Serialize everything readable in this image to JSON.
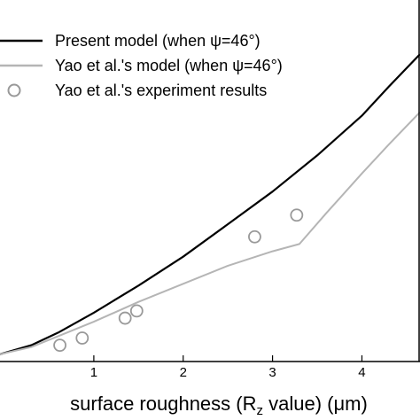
{
  "chart_data": {
    "type": "line",
    "xlabel_parts": {
      "main": "surface roughness (R",
      "sub": "z",
      "rest": " value) (μm)"
    },
    "xlim": [
      -0.05,
      4.65
    ],
    "ylim": [
      0,
      1
    ],
    "x_ticks": [
      1,
      2,
      3,
      4
    ],
    "legend_position": "top-left",
    "legend": [
      {
        "label": "Present model (when ψ=46°)",
        "color": "#000000",
        "kind": "line"
      },
      {
        "label": "Yao et al.'s model (when ψ=46°)",
        "color": "#b5b5b5",
        "kind": "line"
      },
      {
        "label": "Yao et al.'s experiment results",
        "color": "#999999",
        "kind": "marker"
      }
    ],
    "series": [
      {
        "name": "Present model (when ψ=46°)",
        "kind": "line",
        "color": "#000000",
        "x": [
          -0.05,
          0.3,
          0.6,
          1.0,
          1.5,
          2.0,
          2.5,
          3.0,
          3.5,
          4.0,
          4.3,
          4.65
        ],
        "y": [
          0.02,
          0.045,
          0.08,
          0.135,
          0.21,
          0.29,
          0.38,
          0.47,
          0.57,
          0.68,
          0.76,
          0.85
        ]
      },
      {
        "name": "Yao et al.'s model (when ψ=46°)",
        "kind": "line",
        "color": "#b5b5b5",
        "x": [
          -0.05,
          0.3,
          0.6,
          1.0,
          1.5,
          2.0,
          2.5,
          3.0,
          3.3,
          3.6,
          4.0,
          4.3,
          4.65
        ],
        "y": [
          0.02,
          0.04,
          0.07,
          0.11,
          0.165,
          0.215,
          0.265,
          0.305,
          0.325,
          0.41,
          0.52,
          0.6,
          0.69
        ]
      },
      {
        "name": "Yao et al.'s experiment results",
        "kind": "scatter",
        "color": "#999999",
        "x": [
          0.62,
          0.87,
          1.35,
          1.48,
          2.8,
          3.27
        ],
        "y": [
          0.045,
          0.065,
          0.12,
          0.14,
          0.345,
          0.405
        ]
      }
    ]
  }
}
